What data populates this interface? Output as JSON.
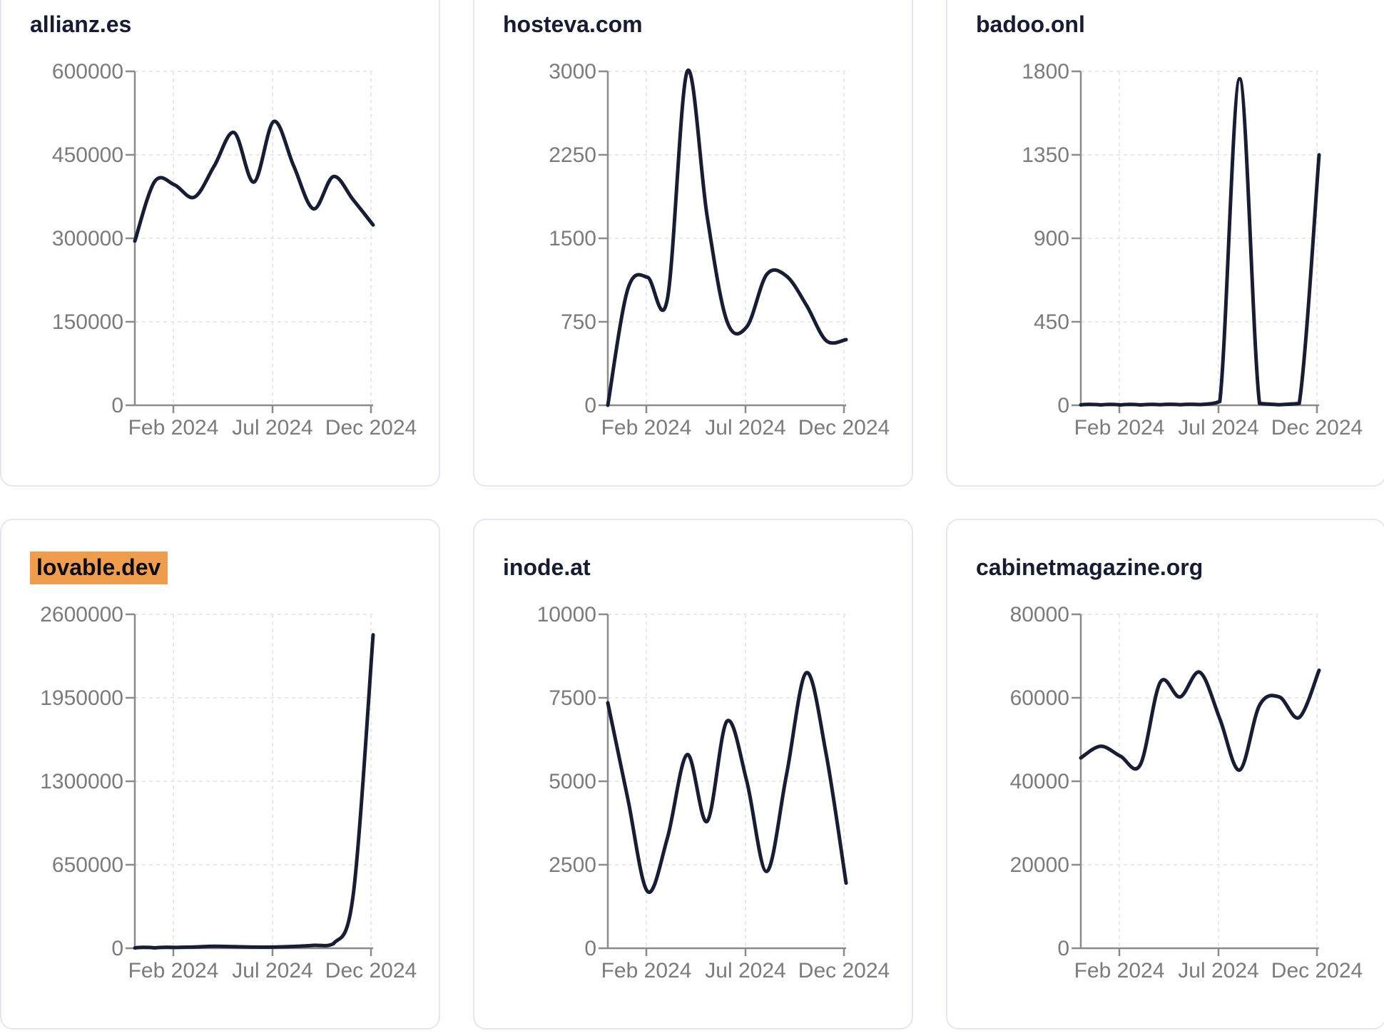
{
  "page": {
    "background": "#ffffff",
    "card_border": "#e4e7ed",
    "line_color": "#191d33",
    "axis_color": "#8b8b8b",
    "grid_color": "#e9e9e9",
    "tick_text_color": "#7b7b7b",
    "title_color": "#171b33",
    "highlight_color": "#ef9d4d"
  },
  "chart_data": [
    {
      "type": "line",
      "title": "allianz.es",
      "highlighted": false,
      "x_categories": [
        "2023-12",
        "2024-01",
        "2024-02",
        "2024-03",
        "2024-04",
        "2024-05",
        "2024-06",
        "2024-07",
        "2024-08",
        "2024-09",
        "2024-10",
        "2024-11",
        "2024-12"
      ],
      "x_tick_labels": [
        "Feb 2024",
        "Jul 2024",
        "Dec 2024"
      ],
      "yticks": [
        0,
        150000,
        300000,
        450000,
        600000
      ],
      "ylim": [
        0,
        600000
      ],
      "values": [
        295000,
        402000,
        396000,
        374000,
        430000,
        490000,
        401000,
        510000,
        430000,
        353000,
        411000,
        369000,
        324000
      ]
    },
    {
      "type": "line",
      "title": "hosteva.com",
      "highlighted": false,
      "x_categories": [
        "2023-12",
        "2024-01",
        "2024-02",
        "2024-03",
        "2024-04",
        "2024-05",
        "2024-06",
        "2024-07",
        "2024-08",
        "2024-09",
        "2024-10",
        "2024-11",
        "2024-12"
      ],
      "x_tick_labels": [
        "Feb 2024",
        "Jul 2024",
        "Dec 2024"
      ],
      "yticks": [
        0,
        750,
        1500,
        2250,
        3000
      ],
      "ylim": [
        0,
        3000
      ],
      "values": [
        0,
        1040,
        1150,
        955,
        3000,
        1700,
        755,
        705,
        1175,
        1160,
        900,
        580,
        590
      ]
    },
    {
      "type": "line",
      "title": "badoo.onl",
      "highlighted": false,
      "x_categories": [
        "2023-12",
        "2024-01",
        "2024-02",
        "2024-03",
        "2024-04",
        "2024-05",
        "2024-06",
        "2024-07",
        "2024-08",
        "2024-09",
        "2024-10",
        "2024-11",
        "2024-12"
      ],
      "x_tick_labels": [
        "Feb 2024",
        "Jul 2024",
        "Dec 2024"
      ],
      "yticks": [
        0,
        450,
        900,
        1350,
        1800
      ],
      "ylim": [
        0,
        1800
      ],
      "values": [
        2,
        2,
        2,
        2,
        3,
        3,
        4,
        20,
        1760,
        10,
        3,
        10,
        1350
      ]
    },
    {
      "type": "line",
      "title": "lovable.dev",
      "highlighted": true,
      "x_categories": [
        "2023-12",
        "2024-01",
        "2024-02",
        "2024-03",
        "2024-04",
        "2024-05",
        "2024-06",
        "2024-07",
        "2024-08",
        "2024-09",
        "2024-10",
        "2024-11",
        "2024-12"
      ],
      "x_tick_labels": [
        "Feb 2024",
        "Jul 2024",
        "Dec 2024"
      ],
      "yticks": [
        0,
        650000,
        1300000,
        1950000,
        2600000
      ],
      "ylim": [
        0,
        2600000
      ],
      "values": [
        2000,
        3000,
        6000,
        10000,
        15000,
        12000,
        9000,
        9000,
        14000,
        22000,
        35000,
        420000,
        2440000
      ]
    },
    {
      "type": "line",
      "title": "inode.at",
      "highlighted": false,
      "x_categories": [
        "2023-12",
        "2024-01",
        "2024-02",
        "2024-03",
        "2024-04",
        "2024-05",
        "2024-06",
        "2024-07",
        "2024-08",
        "2024-09",
        "2024-10",
        "2024-11",
        "2024-12"
      ],
      "x_tick_labels": [
        "Feb 2024",
        "Jul 2024",
        "Dec 2024"
      ],
      "yticks": [
        0,
        2500,
        5000,
        7500,
        10000
      ],
      "ylim": [
        0,
        10000
      ],
      "values": [
        7350,
        4500,
        1700,
        3300,
        5800,
        3800,
        6800,
        5000,
        2300,
        5200,
        8250,
        5800,
        1950
      ]
    },
    {
      "type": "line",
      "title": "cabinetmagazine.org",
      "highlighted": false,
      "x_categories": [
        "2023-12",
        "2024-01",
        "2024-02",
        "2024-03",
        "2024-04",
        "2024-05",
        "2024-06",
        "2024-07",
        "2024-08",
        "2024-09",
        "2024-10",
        "2024-11",
        "2024-12"
      ],
      "x_tick_labels": [
        "Feb 2024",
        "Jul 2024",
        "Dec 2024"
      ],
      "yticks": [
        0,
        20000,
        40000,
        60000,
        80000
      ],
      "ylim": [
        0,
        80000
      ],
      "values": [
        45600,
        48400,
        46000,
        44000,
        63700,
        60200,
        66100,
        55000,
        42700,
        58200,
        60200,
        55300,
        66600
      ]
    }
  ]
}
